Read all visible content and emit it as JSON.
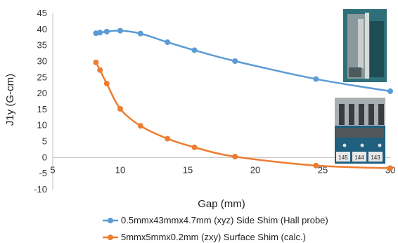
{
  "chart_data": {
    "type": "scatter",
    "xlabel": "Gap (mm)",
    "ylabel": "J1y (G-cm)",
    "xlim": [
      5,
      30
    ],
    "ylim": [
      -10,
      45
    ],
    "x_ticks": [
      5,
      10,
      15,
      20,
      25,
      30
    ],
    "y_ticks": [
      -10,
      -5,
      0,
      5,
      10,
      15,
      20,
      25,
      30,
      35,
      40,
      45
    ],
    "x_tick_labels": [
      "5",
      "10",
      "15",
      "20",
      "25",
      "30"
    ],
    "y_tick_labels": [
      "-10",
      "-5",
      "0",
      "5",
      "10",
      "15",
      "20",
      "25",
      "30",
      "35",
      "40",
      "45"
    ],
    "grid": "none",
    "line_style": "smooth lines with markers",
    "legend_position": "bottom",
    "series": [
      {
        "name": "0.5mmx43mmx4.7mm (xyz) Side Shim (Hall probe)",
        "color": "#5b9bd5",
        "points": [
          {
            "x": 8.2,
            "y": 38.8
          },
          {
            "x": 8.5,
            "y": 39.0
          },
          {
            "x": 9.0,
            "y": 39.3
          },
          {
            "x": 10.0,
            "y": 39.6
          },
          {
            "x": 11.5,
            "y": 38.7
          },
          {
            "x": 13.5,
            "y": 36.0
          },
          {
            "x": 15.5,
            "y": 33.5
          },
          {
            "x": 18.5,
            "y": 30.1
          },
          {
            "x": 24.5,
            "y": 24.5
          },
          {
            "x": 30.0,
            "y": 20.7
          }
        ]
      },
      {
        "name": "5mmx5mmx0.2mm (zxy) Surface Shim (calc.)",
        "color": "#ed7d31",
        "points": [
          {
            "x": 8.2,
            "y": 29.7
          },
          {
            "x": 8.5,
            "y": 27.3
          },
          {
            "x": 9.0,
            "y": 23.1
          },
          {
            "x": 10.0,
            "y": 15.2
          },
          {
            "x": 11.5,
            "y": 9.9
          },
          {
            "x": 13.5,
            "y": 5.9
          },
          {
            "x": 15.5,
            "y": 3.2
          },
          {
            "x": 18.5,
            "y": 0.3
          },
          {
            "x": 24.5,
            "y": -2.5
          },
          {
            "x": 30.0,
            "y": -3.3
          }
        ]
      }
    ]
  },
  "inset_photos": {
    "top": {
      "label": "side-shim-photo",
      "colors": [
        "#2f6f7a",
        "#8a9a9c",
        "#c9cfcd",
        "#1e4d56"
      ]
    },
    "bottom": {
      "label": "surface-shim-photo",
      "tags": [
        "145",
        "144",
        "143"
      ],
      "colors": [
        "#1f5f80",
        "#a8aeb2",
        "#3a3d40",
        "#e8e8e8"
      ]
    }
  }
}
